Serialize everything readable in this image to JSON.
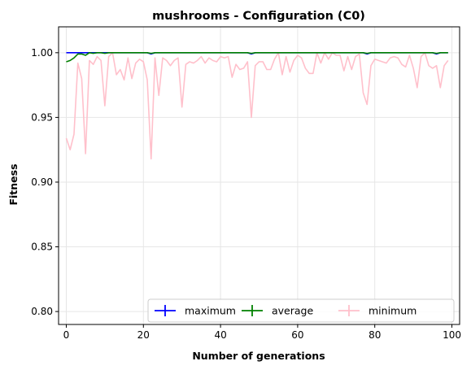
{
  "chart_data": {
    "type": "line",
    "title": "mushrooms - Configuration (C0)",
    "xlabel": "Number of generations",
    "ylabel": "Fitness",
    "xlim": [
      -2,
      102
    ],
    "ylim": [
      0.79,
      1.02
    ],
    "xticks": [
      "0",
      "20",
      "40",
      "60",
      "80",
      "100"
    ],
    "xtick_values": [
      0,
      20,
      40,
      60,
      80,
      100
    ],
    "yticks": [
      "0.80",
      "0.85",
      "0.90",
      "0.95",
      "1.00"
    ],
    "ytick_values": [
      0.8,
      0.85,
      0.9,
      0.95,
      1.0
    ],
    "grid": true,
    "legend_position": "lower-right",
    "series": [
      {
        "name": "maximum",
        "color": "#0000ff",
        "values": [
          1.0,
          1.0,
          1.0,
          1.0,
          1.0,
          1.0,
          1.0,
          1.0,
          1.0,
          1.0,
          1.0,
          1.0,
          1.0,
          1.0,
          1.0,
          1.0,
          1.0,
          1.0,
          1.0,
          1.0,
          1.0,
          1.0,
          0.999,
          1.0,
          1.0,
          1.0,
          1.0,
          1.0,
          1.0,
          1.0,
          1.0,
          1.0,
          1.0,
          1.0,
          1.0,
          1.0,
          1.0,
          1.0,
          1.0,
          1.0,
          1.0,
          1.0,
          1.0,
          1.0,
          1.0,
          1.0,
          1.0,
          1.0,
          0.999,
          1.0,
          1.0,
          1.0,
          1.0,
          1.0,
          1.0,
          1.0,
          1.0,
          1.0,
          1.0,
          1.0,
          1.0,
          1.0,
          1.0,
          1.0,
          1.0,
          1.0,
          1.0,
          1.0,
          1.0,
          1.0,
          1.0,
          1.0,
          1.0,
          1.0,
          1.0,
          1.0,
          1.0,
          1.0,
          0.999,
          1.0,
          1.0,
          1.0,
          1.0,
          1.0,
          1.0,
          1.0,
          1.0,
          1.0,
          1.0,
          1.0,
          1.0,
          1.0,
          1.0,
          1.0,
          1.0,
          1.0,
          0.999,
          1.0,
          1.0,
          1.0
        ]
      },
      {
        "name": "average",
        "color": "#008000",
        "values": [
          0.993,
          0.994,
          0.996,
          0.999,
          0.999,
          0.998,
          1.0,
          0.9995,
          1.0,
          1.0,
          0.9995,
          1.0,
          1.0,
          1.0,
          1.0,
          1.0,
          1.0,
          1.0,
          1.0,
          1.0,
          1.0,
          1.0,
          0.9995,
          1.0,
          1.0,
          1.0,
          1.0,
          1.0,
          1.0,
          1.0,
          1.0,
          1.0,
          1.0,
          1.0,
          1.0,
          1.0,
          1.0,
          1.0,
          1.0,
          1.0,
          1.0,
          1.0,
          1.0,
          1.0,
          1.0,
          1.0,
          1.0,
          1.0,
          0.9995,
          1.0,
          1.0,
          1.0,
          1.0,
          1.0,
          1.0,
          1.0,
          1.0,
          1.0,
          1.0,
          1.0,
          1.0,
          1.0,
          1.0,
          1.0,
          1.0,
          1.0,
          1.0,
          1.0,
          1.0,
          1.0,
          1.0,
          1.0,
          1.0,
          1.0,
          1.0,
          1.0,
          1.0,
          1.0,
          0.9995,
          1.0,
          1.0,
          1.0,
          1.0,
          1.0,
          1.0,
          1.0,
          1.0,
          1.0,
          1.0,
          1.0,
          1.0,
          1.0,
          1.0,
          1.0,
          1.0,
          1.0,
          0.9995,
          1.0,
          1.0,
          1.0
        ]
      },
      {
        "name": "minimum",
        "color": "#ffc0cb",
        "values": [
          0.934,
          0.925,
          0.937,
          0.992,
          0.98,
          0.922,
          0.994,
          0.991,
          0.997,
          0.994,
          0.959,
          0.997,
          1.0,
          0.983,
          0.987,
          0.979,
          0.996,
          0.98,
          0.992,
          0.995,
          0.993,
          0.979,
          0.918,
          0.996,
          0.967,
          0.996,
          0.994,
          0.99,
          0.994,
          0.996,
          0.958,
          0.991,
          0.993,
          0.992,
          0.994,
          0.997,
          0.992,
          0.996,
          0.994,
          0.993,
          0.997,
          0.996,
          0.997,
          0.981,
          0.991,
          0.987,
          0.988,
          0.993,
          0.95,
          0.99,
          0.993,
          0.993,
          0.987,
          0.987,
          0.995,
          1.0,
          0.983,
          0.997,
          0.985,
          0.994,
          0.998,
          0.996,
          0.988,
          0.984,
          0.984,
          1.0,
          0.992,
          1.0,
          0.995,
          1.0,
          0.998,
          0.998,
          0.986,
          0.997,
          0.987,
          0.997,
          0.999,
          0.969,
          0.96,
          0.99,
          0.995,
          0.994,
          0.993,
          0.992,
          0.996,
          0.997,
          0.996,
          0.991,
          0.989,
          0.998,
          0.988,
          0.973,
          0.997,
          1.0,
          0.99,
          0.988,
          0.99,
          0.973,
          0.99,
          0.994
        ]
      }
    ]
  }
}
